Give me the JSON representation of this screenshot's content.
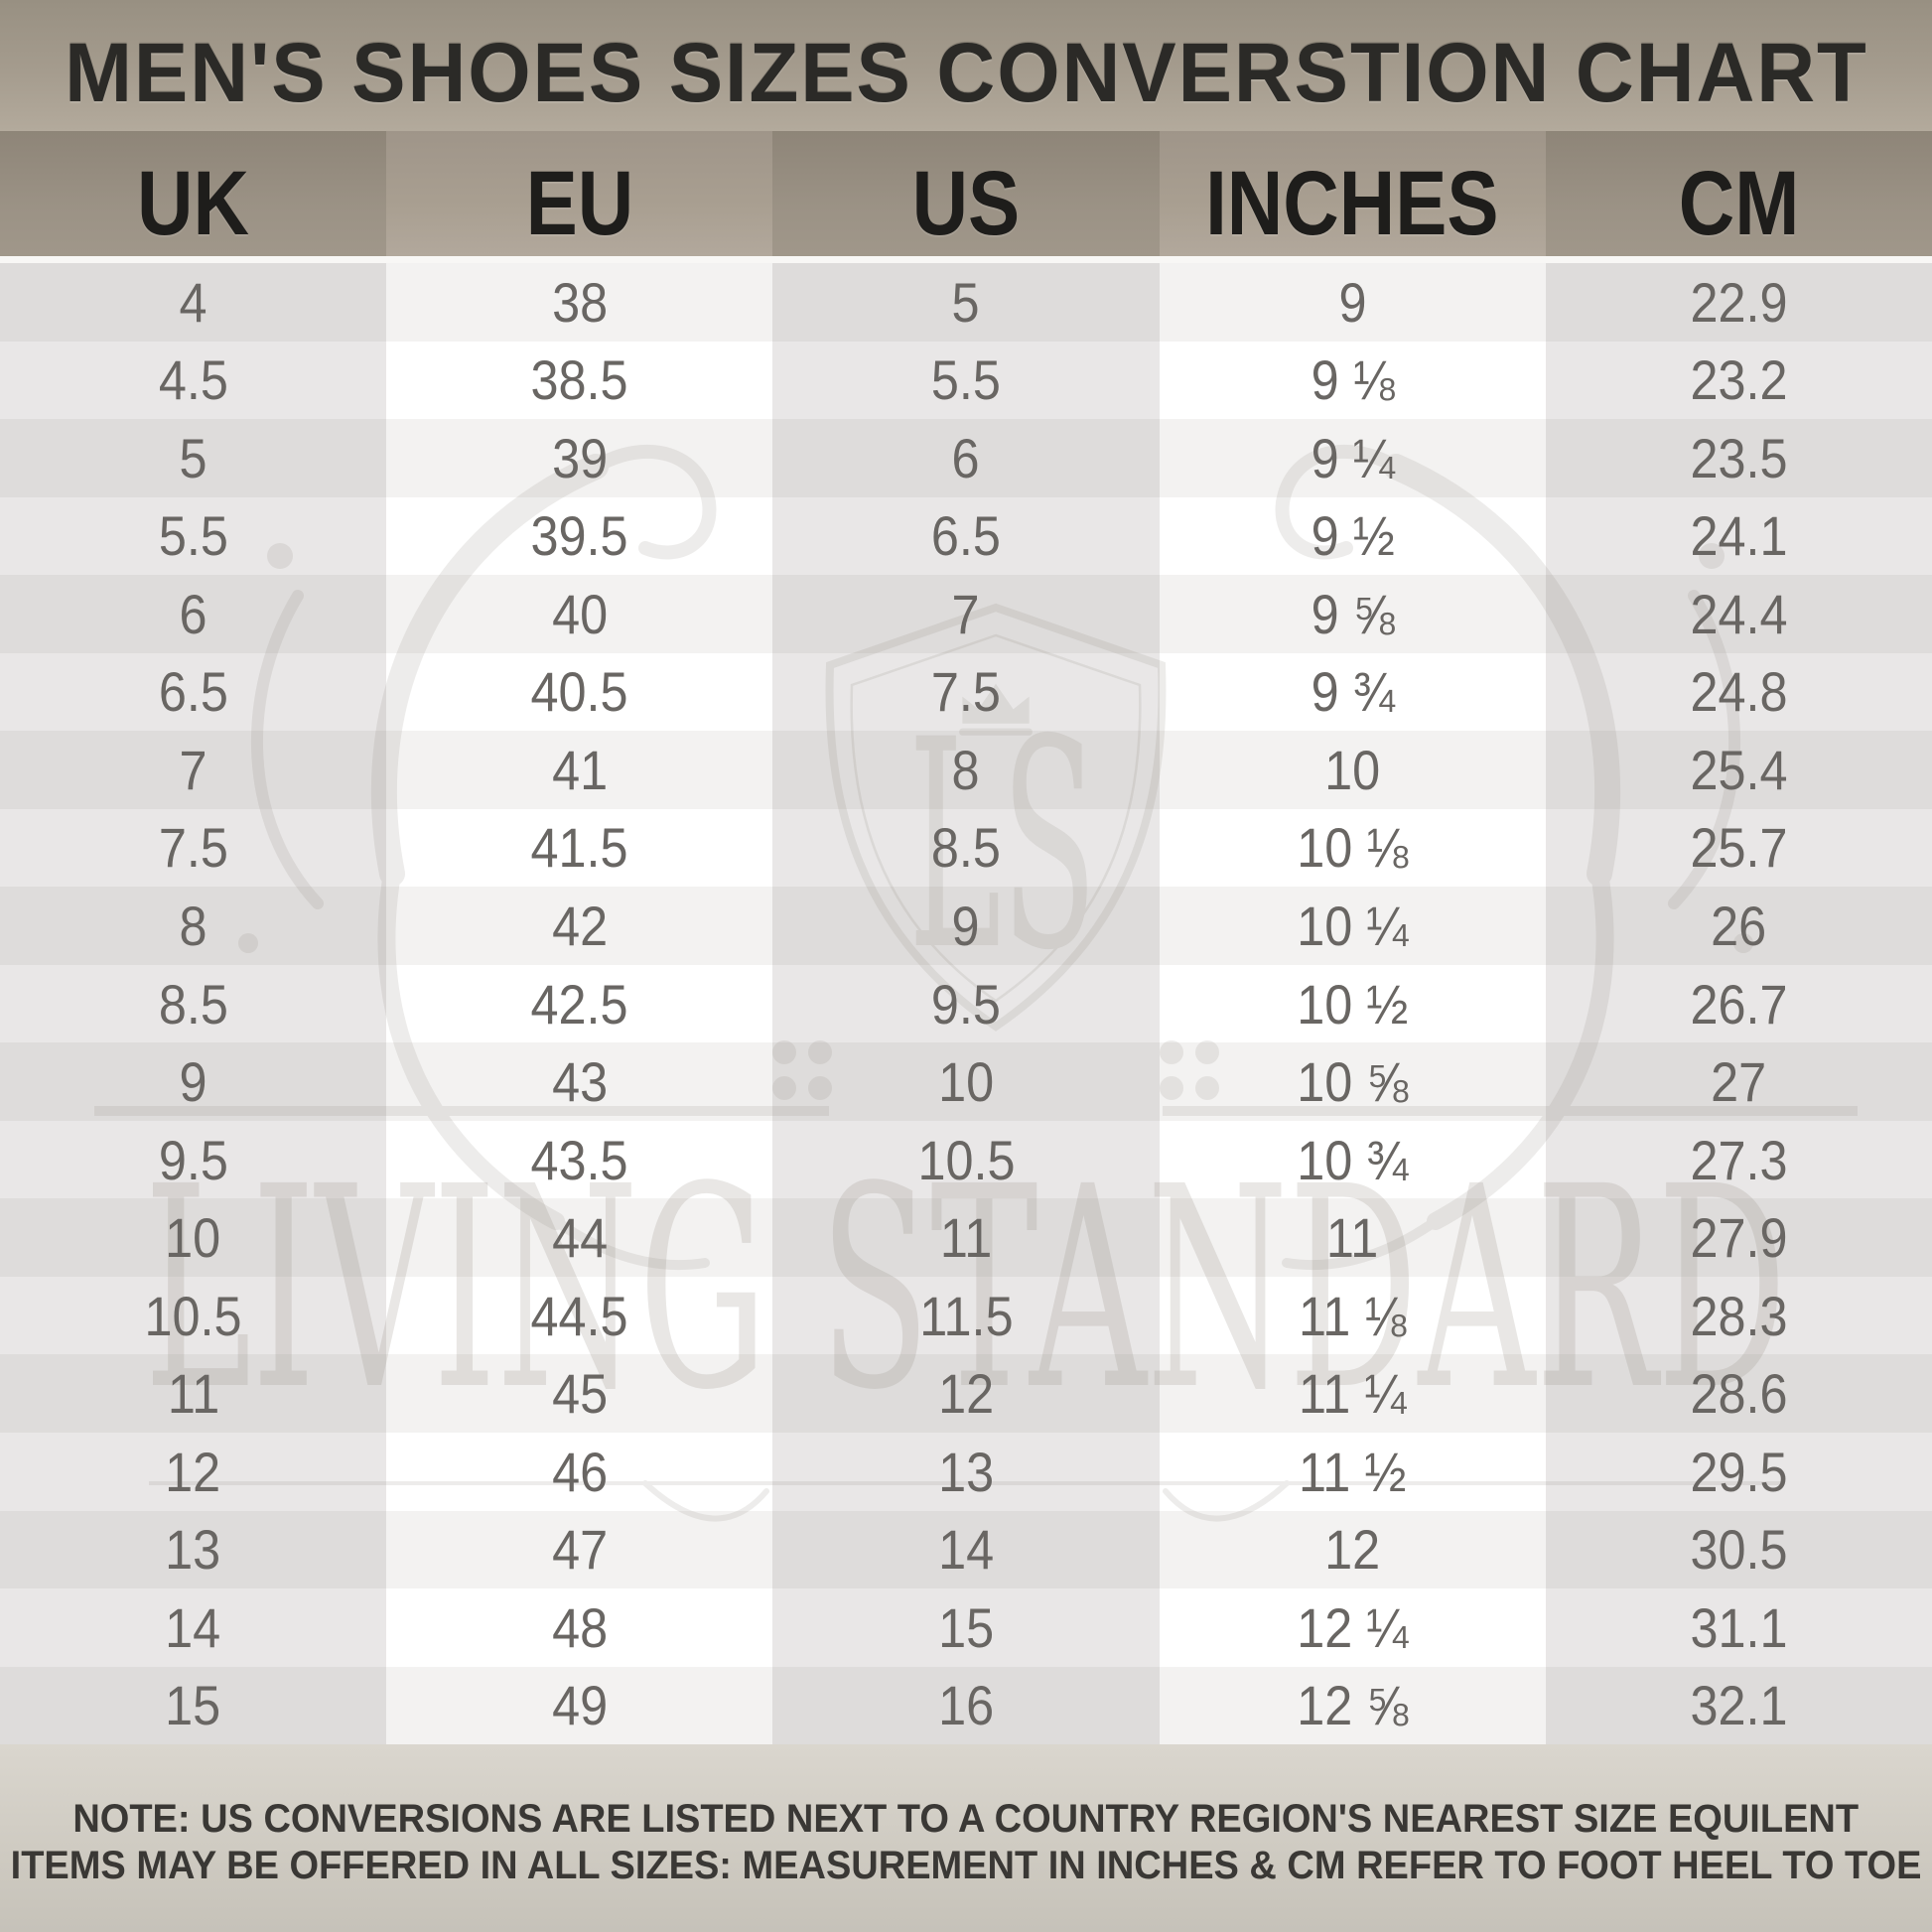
{
  "title": "MEN'S SHOES SIZES CONVERSTION CHART",
  "chart_data": {
    "type": "table",
    "title": "MEN'S SHOES SIZES CONVERSTION CHART",
    "columns": [
      "UK",
      "EU",
      "US",
      "INCHES",
      "CM"
    ],
    "rows": [
      [
        "4",
        "38",
        "5",
        "9",
        "22.9"
      ],
      [
        "4.5",
        "38.5",
        "5.5",
        "9 ⅛",
        "23.2"
      ],
      [
        "5",
        "39",
        "6",
        "9 ¼",
        "23.5"
      ],
      [
        "5.5",
        "39.5",
        "6.5",
        "9 ½",
        "24.1"
      ],
      [
        "6",
        "40",
        "7",
        "9 ⅝",
        "24.4"
      ],
      [
        "6.5",
        "40.5",
        "7.5",
        "9 ¾",
        "24.8"
      ],
      [
        "7",
        "41",
        "8",
        "10",
        "25.4"
      ],
      [
        "7.5",
        "41.5",
        "8.5",
        "10 ⅛",
        "25.7"
      ],
      [
        "8",
        "42",
        "9",
        "10 ¼",
        "26"
      ],
      [
        "8.5",
        "42.5",
        "9.5",
        "10 ½",
        "26.7"
      ],
      [
        "9",
        "43",
        "10",
        "10 ⅝",
        "27"
      ],
      [
        "9.5",
        "43.5",
        "10.5",
        "10 ¾",
        "27.3"
      ],
      [
        "10",
        "44",
        "11",
        "11",
        "27.9"
      ],
      [
        "10.5",
        "44.5",
        "11.5",
        "11 ⅛",
        "28.3"
      ],
      [
        "11",
        "45",
        "12",
        "11 ¼",
        "28.6"
      ],
      [
        "12",
        "46",
        "13",
        "11 ½",
        "29.5"
      ],
      [
        "13",
        "47",
        "14",
        "12",
        "30.5"
      ],
      [
        "14",
        "48",
        "15",
        "12 ¼",
        "31.1"
      ],
      [
        "15",
        "49",
        "16",
        "12 ⅝",
        "32.1"
      ]
    ]
  },
  "note": {
    "label": "NOTE:",
    "line1": "US CONVERSIONS ARE LISTED NEXT TO A COUNTRY REGION'S NEAREST SIZE EQUILENT",
    "line2": "ITEMS MAY BE OFFERED IN ALL SIZES: MEASUREMENT IN INCHES & CM REFER TO FOOT HEEL TO TOE"
  },
  "watermark": {
    "monogram": "LS",
    "brand": "LIVING STANDARD"
  },
  "colors": {
    "title_band_top": "#989082",
    "title_band_bottom": "#b3aa9c",
    "title_text": "#2b2a27",
    "header_band_dark": "#9b9285",
    "header_band_light": "#a99f91",
    "header_text": "#1e1d1b",
    "cell_gray_dark_row": "#dedcdb",
    "cell_gray_light_row": "#e9e7e7",
    "cell_light_dark_row": "#f3f2f1",
    "cell_light_light_row": "#ffffff",
    "number_text": "#696663",
    "note_band_top": "#dad6ce",
    "note_band_bottom": "#c6c2b9",
    "note_text": "#3a3835",
    "watermark_tone": "#8f897e"
  }
}
